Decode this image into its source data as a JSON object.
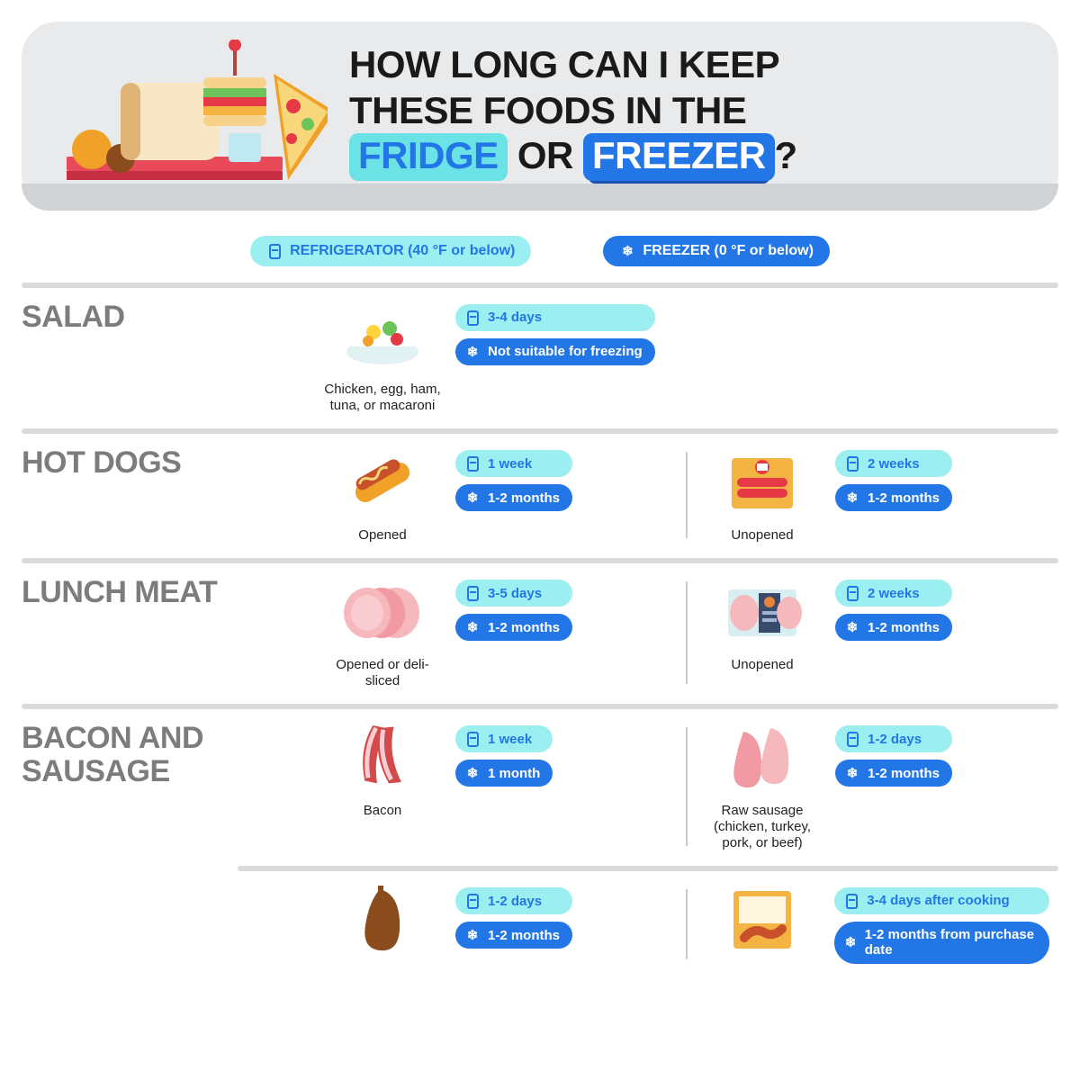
{
  "title": {
    "line1": "HOW LONG CAN I KEEP",
    "line2": "THESE FOODS IN THE",
    "fridge_word": "FRIDGE",
    "or_word": " OR ",
    "freezer_word": "FREEZER",
    "question_mark": "?"
  },
  "colors": {
    "fridge_bg": "#9ceff0",
    "fridge_text": "#2276e6",
    "freezer_bg": "#2276e6",
    "freezer_text": "#ffffff",
    "header_bg": "#e9eaeb",
    "header_shadow": "#cfd3d6",
    "divider": "#d8dadc",
    "section_title": "#7c7c7c",
    "body_text": "#222222"
  },
  "legend": {
    "fridge": "REFRIGERATOR (40 °F or below)",
    "freezer": "FREEZER (0 °F or below)"
  },
  "sections": [
    {
      "title": "SALAD",
      "items": [
        {
          "icon": "salad",
          "caption": "Chicken, egg, ham, tuna, or macaroni",
          "fridge": "3-4 days",
          "freezer": "Not suitable for freezing",
          "wide": true
        }
      ]
    },
    {
      "title": "HOT DOGS",
      "items": [
        {
          "icon": "hotdog",
          "caption": "Opened",
          "fridge": "1 week",
          "freezer": "1-2 months"
        },
        {
          "icon": "hotdog-pack",
          "caption": "Unopened",
          "fridge": "2 weeks",
          "freezer": "1-2 months"
        }
      ]
    },
    {
      "title": "LUNCH MEAT",
      "items": [
        {
          "icon": "meat-slices",
          "caption": "Opened or deli-sliced",
          "fridge": "3-5 days",
          "freezer": "1-2 months"
        },
        {
          "icon": "meat-pack",
          "caption": "Unopened",
          "fridge": "2 weeks",
          "freezer": "1-2 months"
        }
      ]
    },
    {
      "title": "BACON AND SAUSAGE",
      "items": [
        {
          "icon": "bacon",
          "caption": "Bacon",
          "fridge": "1 week",
          "freezer": "1 month"
        },
        {
          "icon": "sausage-raw",
          "caption": "Raw sausage (chicken, turkey, pork, or beef)",
          "fridge": "1-2 days",
          "freezer": "1-2 months"
        }
      ]
    },
    {
      "title": "",
      "indent_divider": true,
      "items": [
        {
          "icon": "sausage-dark",
          "caption": "",
          "fridge": "1-2 days",
          "freezer": "1-2 months"
        },
        {
          "icon": "sausage-box",
          "caption": "",
          "fridge": "3-4 days after cooking",
          "freezer": "1-2 months from purchase date",
          "wide": true
        }
      ]
    }
  ]
}
